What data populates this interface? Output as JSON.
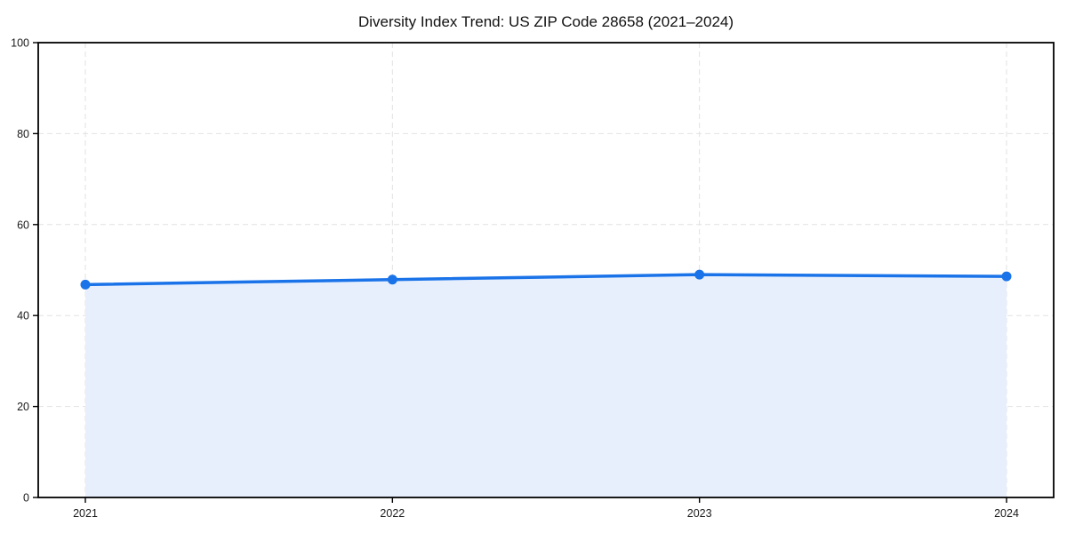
{
  "chart": {
    "title": "Diversity Index Trend: US ZIP Code 28658 (2021–2024)"
  },
  "chart_data": {
    "type": "area",
    "title": "Diversity Index Trend: US ZIP Code 28658 (2021–2024)",
    "xlabel": "",
    "ylabel": "",
    "x": [
      "2021",
      "2022",
      "2023",
      "2024"
    ],
    "series": [
      {
        "name": "Diversity Index",
        "values": [
          46.8,
          47.9,
          49.0,
          48.6
        ]
      }
    ],
    "ylim": [
      0,
      100
    ],
    "yticks": [
      0,
      20,
      40,
      60,
      80,
      100
    ],
    "grid": true,
    "grid_style": "dashed",
    "legend_position": "none",
    "marker": "circle",
    "colors": {
      "line": "#1a73e8",
      "marker": "#1a73e8",
      "area_fill": "#e7effd",
      "gridline": "#e2e2e2",
      "spine": "#000000",
      "tick_text": "#1a1a1a",
      "title_text": "#111111",
      "background": "#ffffff"
    }
  }
}
